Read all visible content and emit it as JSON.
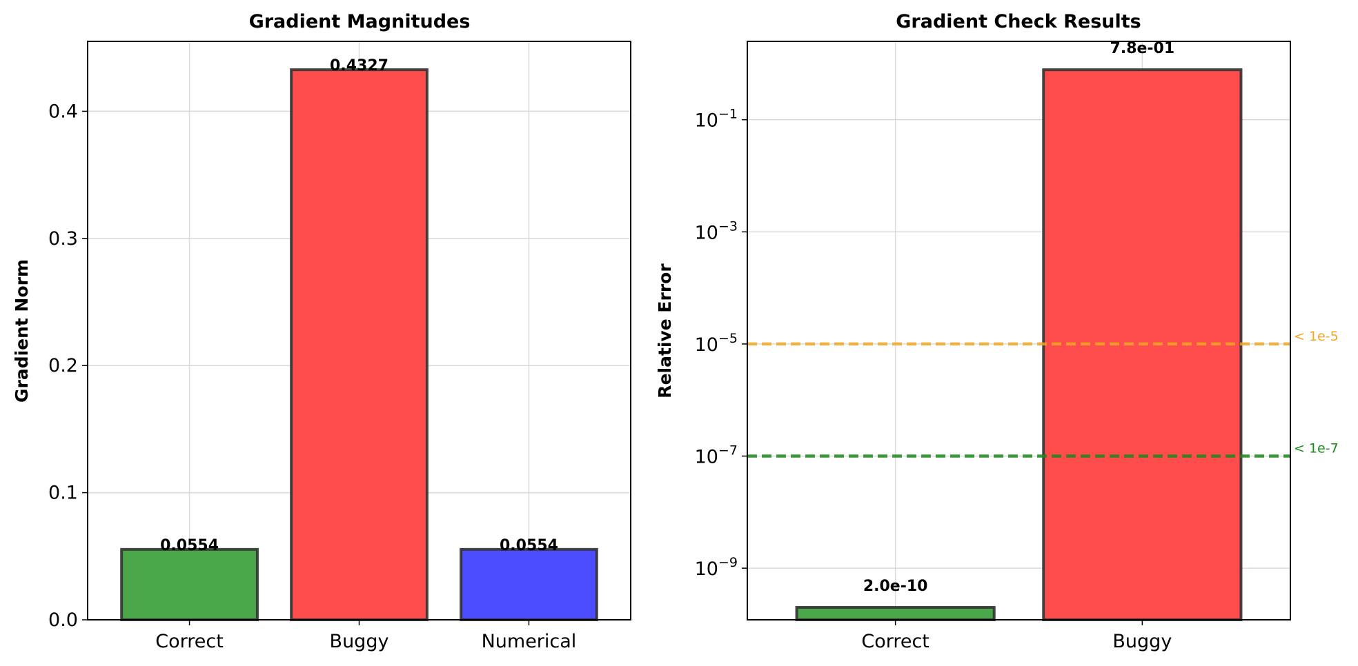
{
  "chart_data": [
    {
      "type": "bar",
      "title": "Gradient Magnitudes",
      "ylabel": "Gradient Norm",
      "xlabel": "",
      "categories": [
        "Correct",
        "Buggy",
        "Numerical"
      ],
      "values": [
        0.0554,
        0.4327,
        0.0554
      ],
      "value_labels": [
        "0.0554",
        "0.4327",
        "0.0554"
      ],
      "bar_colors": [
        "#4aa84a",
        "#ff4c4c",
        "#4c4cff"
      ],
      "edge_color": "#333333",
      "ylim": [
        0,
        0.455
      ],
      "yticks": [
        0.0,
        0.1,
        0.2,
        0.3,
        0.4
      ],
      "ytick_labels": [
        "0.0",
        "0.1",
        "0.2",
        "0.3",
        "0.4"
      ],
      "grid": true
    },
    {
      "type": "bar",
      "title": "Gradient Check Results",
      "ylabel": "Relative Error",
      "xlabel": "",
      "yscale": "log",
      "categories": [
        "Correct",
        "Buggy"
      ],
      "values": [
        2e-10,
        0.78
      ],
      "value_labels": [
        "2.0e-10",
        "7.8e-01"
      ],
      "bar_colors": [
        "#4aa84a",
        "#ff4c4c"
      ],
      "edge_color": "#333333",
      "ylim": [
        1.2e-10,
        2.5
      ],
      "yticks": [
        1e-09,
        1e-07,
        1e-05,
        0.001,
        0.1
      ],
      "ytick_labels": [
        {
          "base": "10",
          "exp": "−9"
        },
        {
          "base": "10",
          "exp": "−7"
        },
        {
          "base": "10",
          "exp": "−5"
        },
        {
          "base": "10",
          "exp": "−3"
        },
        {
          "base": "10",
          "exp": "−1"
        }
      ],
      "thresholds": [
        {
          "value": 1e-05,
          "label": "< 1e-5",
          "color": "#f5a623"
        },
        {
          "value": 1e-07,
          "label": "< 1e-7",
          "color": "#1a8a1a"
        }
      ],
      "grid": true
    }
  ]
}
